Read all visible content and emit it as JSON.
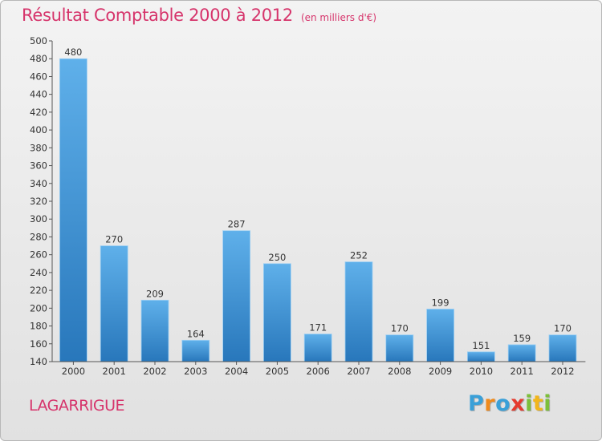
{
  "chart_data": {
    "type": "bar",
    "title": "Résultat Comptable 2000 à 2012",
    "subtitle": "(en milliers d'€)",
    "categories": [
      "2000",
      "2001",
      "2002",
      "2003",
      "2004",
      "2005",
      "2006",
      "2007",
      "2008",
      "2009",
      "2010",
      "2011",
      "2012"
    ],
    "values": [
      480,
      270,
      209,
      164,
      287,
      250,
      171,
      252,
      170,
      199,
      151,
      159,
      170
    ],
    "ylim": [
      140,
      500
    ],
    "yticks": [
      140,
      160,
      180,
      200,
      220,
      240,
      260,
      280,
      300,
      320,
      340,
      360,
      380,
      400,
      420,
      440,
      460,
      480,
      500
    ],
    "xlabel": "",
    "ylabel": "",
    "grid": false
  },
  "commune": "LAGARRIGUE",
  "brand": {
    "name": "Proxiti",
    "letters": [
      "P",
      "r",
      "o",
      "x",
      "i",
      "t",
      "i"
    ],
    "letter_colors": [
      "#3aa0d8",
      "#f08a1c",
      "#3aa0d8",
      "#e53b2f",
      "#7cbf3a",
      "#f2b61b",
      "#7cbf3a"
    ]
  },
  "colors": {
    "accent": "#d6346b",
    "bar_light": "#5fb0ea",
    "bar_dark": "#2877bb",
    "axis": "#555555"
  }
}
